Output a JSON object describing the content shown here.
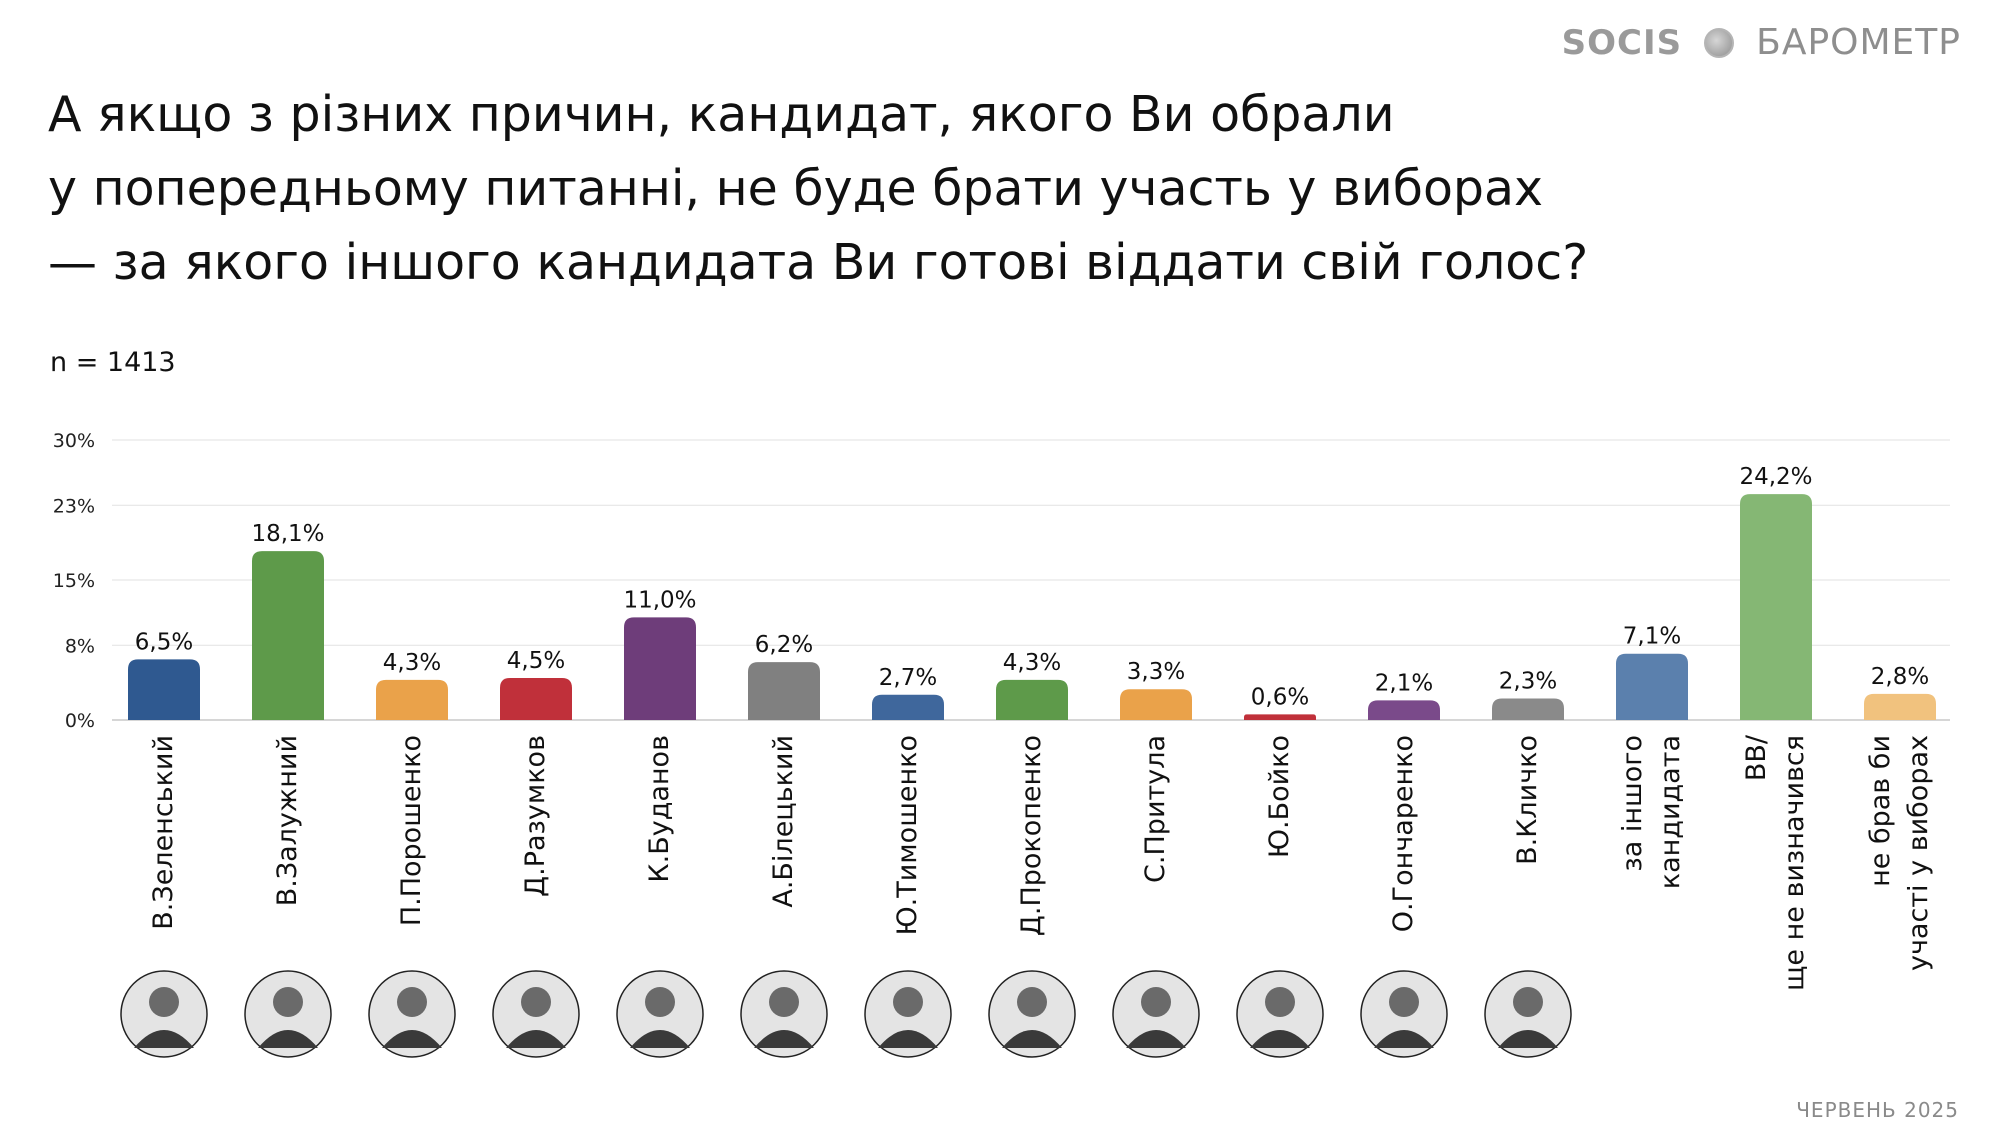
{
  "brand": {
    "left": "SOCIS",
    "right": "БАРОМЕТР",
    "globe_icon": "globe-icon"
  },
  "title_lines": [
    "А якщо з різних причин, кандидат, якого Ви обрали",
    "у попередньому питанні, не буде брати участь у виборах",
    "— за якого іншого кандидата Ви готові віддати свій голос?"
  ],
  "sample_label": "n = 1413",
  "footer": "ЧЕРВЕНЬ 2025",
  "chart_data": {
    "type": "bar",
    "ylim": [
      0,
      30
    ],
    "y_ticks": [
      0,
      8,
      15,
      23,
      30
    ],
    "y_tick_labels": [
      "0%",
      "8%",
      "15%",
      "23%",
      "30%"
    ],
    "grid": true,
    "categories": [
      [
        "В.Зеленський"
      ],
      [
        "В.Залужний"
      ],
      [
        "П.Порошенко"
      ],
      [
        "Д.Разумков"
      ],
      [
        "К.Буданов"
      ],
      [
        "А.Білецький"
      ],
      [
        "Ю.Тимошенко"
      ],
      [
        "Д.Прокопенко"
      ],
      [
        "С.Притула"
      ],
      [
        "Ю.Бойко"
      ],
      [
        "О.Гончаренко"
      ],
      [
        "В.Кличко"
      ],
      [
        "за іншого",
        "кандидата"
      ],
      [
        "ВВ/",
        "ще не визначився"
      ],
      [
        "не брав би",
        "участі у виборах"
      ]
    ],
    "values": [
      6.5,
      18.1,
      4.3,
      4.5,
      11.0,
      6.2,
      2.7,
      4.3,
      3.3,
      0.6,
      2.1,
      2.3,
      7.1,
      24.2,
      2.8
    ],
    "value_labels": [
      "6,5%",
      "18,1%",
      "4,3%",
      "4,5%",
      "11,0%",
      "6,2%",
      "2,7%",
      "4,3%",
      "3,3%",
      "0,6%",
      "2,1%",
      "2,3%",
      "7,1%",
      "24,2%",
      "2,8%"
    ],
    "colors": [
      "#2f5990",
      "#5e9a4a",
      "#eaa24a",
      "#c0303a",
      "#6e3d7a",
      "#808080",
      "#3f679c",
      "#5e9a4a",
      "#eaa24a",
      "#c0303a",
      "#7a4a8a",
      "#8a8a8a",
      "#5b80ad",
      "#85b774",
      "#f1c27e"
    ],
    "portraits": [
      true,
      true,
      true,
      true,
      true,
      true,
      true,
      true,
      true,
      true,
      true,
      true,
      false,
      false,
      false
    ]
  }
}
